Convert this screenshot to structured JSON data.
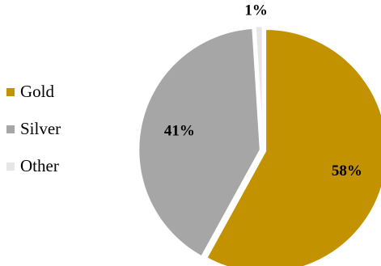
{
  "chart_data": {
    "type": "pie",
    "title": "",
    "legend_position": "left",
    "start_angle_deg": 0,
    "direction": "clockwise",
    "slices": [
      {
        "name": "Gold",
        "value": 58,
        "label": "58%",
        "color": "#C29200"
      },
      {
        "name": "Silver",
        "value": 41,
        "label": "41%",
        "color": "#A6A6A6"
      },
      {
        "name": "Other",
        "value": 1,
        "label": "1%",
        "color": "#E6E6E6"
      }
    ]
  }
}
